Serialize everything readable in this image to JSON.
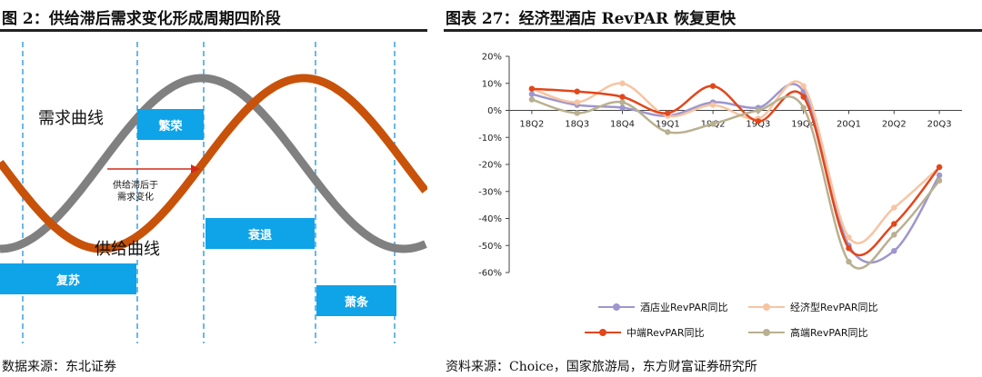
{
  "left_figure": {
    "title": "图 2：供给滞后需求变化形成周期四阶段",
    "demand_label": "需求曲线",
    "supply_label": "供给曲线",
    "lag_note_line1": "供给滞后于",
    "lag_note_line2": "需求变化",
    "phases": {
      "prosperity": "繁荣",
      "recession": "衰退",
      "recovery": "复苏",
      "depression": "萧条"
    },
    "source": "数据来源：东北证券",
    "colors": {
      "demand": "#808080",
      "supply": "#c8520a",
      "phase_box": "#0fa3e8",
      "divider": "#3aa0e0",
      "arrow": "#d42a1a"
    }
  },
  "right_figure": {
    "title": "图表 27：经济型酒店 RevPAR 恢复更快",
    "source": "资料来源：Choice，国家旅游局，东方财富证券研究所"
  },
  "chart_data": [
    {
      "type": "line",
      "title": "图表 27：经济型酒店 RevPAR 恢复更快",
      "categories": [
        "18Q2",
        "18Q3",
        "18Q4",
        "19Q1",
        "19Q2",
        "19Q3",
        "19Q4",
        "20Q1",
        "20Q2",
        "20Q3"
      ],
      "ylim": [
        -60,
        20
      ],
      "yticks": [
        20,
        10,
        0,
        -10,
        -20,
        -30,
        -40,
        -50,
        -60
      ],
      "ytick_labels": [
        "20%",
        "10%",
        "0%",
        "-10%",
        "-20%",
        "-30%",
        "-40%",
        "-50%",
        "-60%"
      ],
      "series": [
        {
          "name": "酒店业RevPAR同比",
          "color": "#9e96cc",
          "values": [
            6,
            2,
            1,
            -2,
            3,
            1,
            7,
            -50,
            -52,
            -24
          ]
        },
        {
          "name": "经济型RevPAR同比",
          "color": "#f7c4a2",
          "values": [
            8,
            3,
            10,
            -2,
            2,
            -3,
            9,
            -47,
            -36,
            -21
          ]
        },
        {
          "name": "中端RevPAR同比",
          "color": "#e2461b",
          "values": [
            8,
            7,
            5,
            -1,
            9,
            -4,
            5,
            -51,
            -42,
            -21
          ]
        },
        {
          "name": "高端RevPAR同比",
          "color": "#b8b090",
          "values": [
            4,
            -1,
            3,
            -8,
            -5,
            0,
            1,
            -56,
            -46,
            -26
          ]
        }
      ],
      "legend_position": "bottom"
    }
  ]
}
